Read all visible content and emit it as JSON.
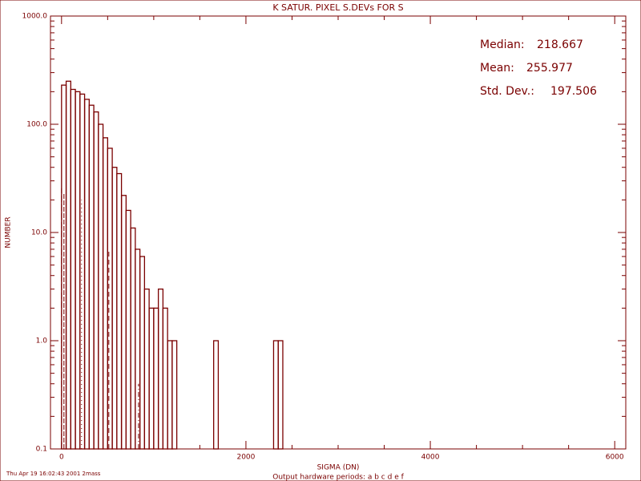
{
  "chart_data": {
    "type": "histogram",
    "title": "K SATUR. PIXEL S.DEVs FOR S",
    "xlabel": "SIGMA (DN)",
    "ylabel": "NUMBER",
    "footer": "Thu Apr 19 16:02:43 2001 2mass",
    "subtitle": "Output hardware periods: a b c d e f",
    "color": "#7a0000",
    "log_y": true,
    "bins": [
      0,
      50,
      100,
      150,
      200,
      250,
      300,
      350,
      400,
      450,
      500,
      550,
      600,
      650,
      700,
      750,
      800,
      850,
      900,
      950,
      1000,
      1050,
      1100,
      1150,
      1200,
      1250,
      1300,
      1350,
      1400,
      1450,
      1500,
      1550,
      1600,
      1650,
      1700,
      1750,
      1800,
      1850,
      1900,
      1950,
      2000,
      2050,
      2100,
      2150,
      2200,
      2250,
      2300,
      2350,
      2400
    ],
    "values": [
      230,
      250,
      210,
      200,
      190,
      170,
      150,
      130,
      100,
      75,
      60,
      40,
      35,
      22,
      16,
      11,
      7,
      6,
      3,
      2,
      2,
      3,
      2,
      1,
      1,
      0,
      0,
      0,
      0,
      0,
      0,
      0,
      0,
      1,
      0,
      0,
      0,
      0,
      0,
      0,
      0,
      0,
      0,
      0,
      0,
      0,
      1,
      1
    ],
    "xlim": [
      -120,
      6120
    ],
    "ylim": [
      0.1,
      1000
    ],
    "xticks": [
      0,
      2000,
      4000,
      6000
    ],
    "yticks": [
      {
        "value": 1000,
        "label": "1000.0"
      },
      {
        "value": 100,
        "label": "100.0"
      },
      {
        "value": 10,
        "label": "10.0"
      },
      {
        "value": 1,
        "label": "1.0"
      },
      0.1
    ],
    "period_lines": {
      "x": [
        0,
        26,
        217,
        513,
        835
      ],
      "top": [
        25.6,
        23,
        20,
        6.7,
        0.4
      ]
    },
    "stats": [
      {
        "label": "Median:",
        "value": 218.667
      },
      {
        "label": "Mean:",
        "value": 255.977
      },
      {
        "label": "Std. Dev.:",
        "value": 197.506
      }
    ]
  }
}
